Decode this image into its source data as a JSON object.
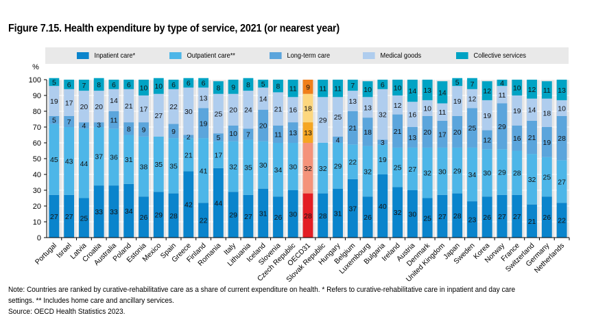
{
  "figure": {
    "title": "Figure 7.15. Health expenditure by type of service, 2021 (or nearest year)",
    "note_line1": "Note: Countries are ranked by curative-rehabilitative care as a share of current expenditure on health. * Refers to curative-rehabilitative care in inpatient and day care",
    "note_line2": "settings. ** Includes home care and ancillary services.",
    "source": "Source: OECD Health Statistics 2023."
  },
  "chart_data": {
    "type": "bar",
    "stacked": true,
    "title": "Figure 7.15. Health expenditure by type of service, 2021 (or nearest year)",
    "xlabel": "",
    "ylabel": "%",
    "ylim": [
      0,
      100
    ],
    "yticks": [
      0,
      10,
      20,
      30,
      40,
      50,
      60,
      70,
      80,
      90,
      100
    ],
    "grid": true,
    "legend_position": "top",
    "highlight_category": "OECD31",
    "categories": [
      "Portugal",
      "Israel",
      "Latvia",
      "Croatia",
      "Australia",
      "Poland",
      "Estonia",
      "Mexico",
      "Spain",
      "Greece",
      "Finland",
      "Romania",
      "Italy",
      "Lithuania",
      "Iceland",
      "Slovenia",
      "Czech Republic",
      "OECD31",
      "Slovak Republic",
      "Hungary",
      "Belgium",
      "Luxembourg",
      "Bulgaria",
      "Ireland",
      "Austria",
      "Denmark",
      "United Kingdom",
      "Japan",
      "Sweden",
      "Korea",
      "Norway",
      "France",
      "Switzerland",
      "Germany",
      "Netherlands"
    ],
    "series": [
      {
        "name": "Inpatient care*",
        "color": "#0a84cc",
        "highlight_color": "#e31e24",
        "values": [
          27,
          27,
          25,
          33,
          33,
          34,
          26,
          29,
          28,
          42,
          22,
          44,
          29,
          27,
          31,
          26,
          30,
          28,
          28,
          31,
          37,
          26,
          40,
          32,
          30,
          25,
          27,
          28,
          23,
          26,
          27,
          27,
          21,
          26,
          22
        ]
      },
      {
        "name": "Outpatient care**",
        "color": "#4db6e8",
        "highlight_color": "#f4937a",
        "values": [
          45,
          43,
          44,
          37,
          36,
          31,
          38,
          35,
          35,
          21,
          41,
          17,
          32,
          35,
          30,
          34,
          30,
          32,
          32,
          29,
          22,
          32,
          19,
          25,
          27,
          32,
          30,
          29,
          34,
          30,
          29,
          28,
          32,
          25,
          27
        ]
      },
      {
        "name": "Long-term care",
        "color": "#5ba5dc",
        "highlight_color": "#f5a623",
        "values": [
          5,
          7,
          4,
          3,
          11,
          8,
          9,
          0,
          9,
          2,
          19,
          5,
          10,
          7,
          20,
          11,
          13,
          13,
          0,
          4,
          21,
          18,
          3,
          21,
          13,
          20,
          17,
          20,
          25,
          12,
          29,
          16,
          21,
          19,
          28
        ]
      },
      {
        "name": "Medical goods",
        "color": "#afcdee",
        "highlight_color": "#fdd77f",
        "values": [
          19,
          17,
          20,
          20,
          14,
          21,
          17,
          27,
          22,
          30,
          13,
          25,
          20,
          24,
          14,
          21,
          16,
          18,
          29,
          25,
          13,
          13,
          32,
          12,
          16,
          10,
          11,
          19,
          12,
          19,
          11,
          19,
          14,
          18,
          10
        ]
      },
      {
        "name": "Collective services",
        "color": "#00a3c4",
        "highlight_color": "#f07f1a",
        "values": [
          5,
          6,
          7,
          8,
          6,
          6,
          10,
          10,
          6,
          6,
          6,
          8,
          9,
          8,
          5,
          8,
          11,
          9,
          11,
          11,
          7,
          10,
          6,
          10,
          14,
          13,
          14,
          5,
          7,
          12,
          4,
          10,
          12,
          11,
          13
        ]
      }
    ]
  }
}
